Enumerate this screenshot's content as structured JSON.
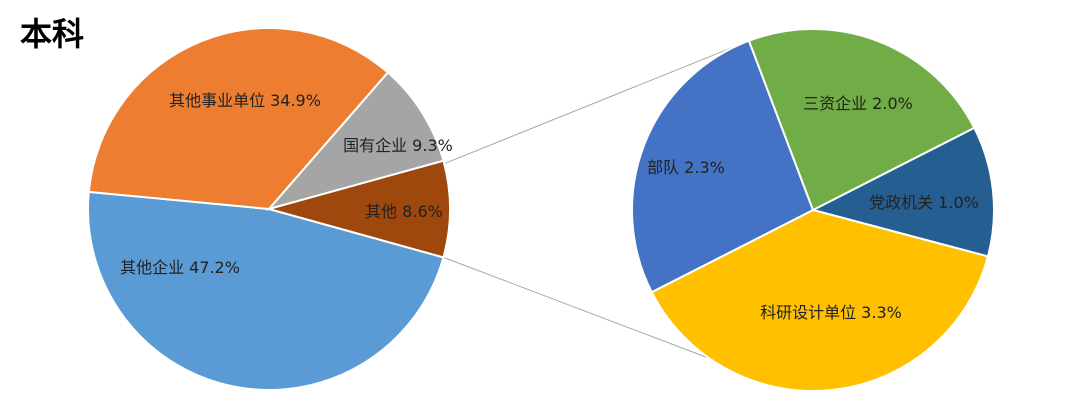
{
  "chart_data": [
    {
      "type": "pie",
      "title": "本科",
      "categories": [
        "其他企业",
        "其他事业单位",
        "国有企业",
        "其他"
      ],
      "values": [
        47.2,
        34.9,
        9.3,
        8.6
      ],
      "value_labels": [
        "47.2%",
        "34.9%",
        "9.3%",
        "8.6%"
      ],
      "colors": [
        "#5b9bd5",
        "#ed7d31",
        "#a5a5a5",
        "#9e480e"
      ]
    },
    {
      "type": "pie",
      "categories": [
        "党政机关",
        "科研设计单位",
        "部队",
        "三资企业"
      ],
      "values": [
        1.0,
        3.3,
        2.3,
        2.0
      ],
      "value_labels": [
        "1.0%",
        "3.3%",
        "2.3%",
        "2.0%"
      ],
      "colors": [
        "#255e91",
        "#ffc000",
        "#4472c4",
        "#70ad47"
      ]
    }
  ]
}
